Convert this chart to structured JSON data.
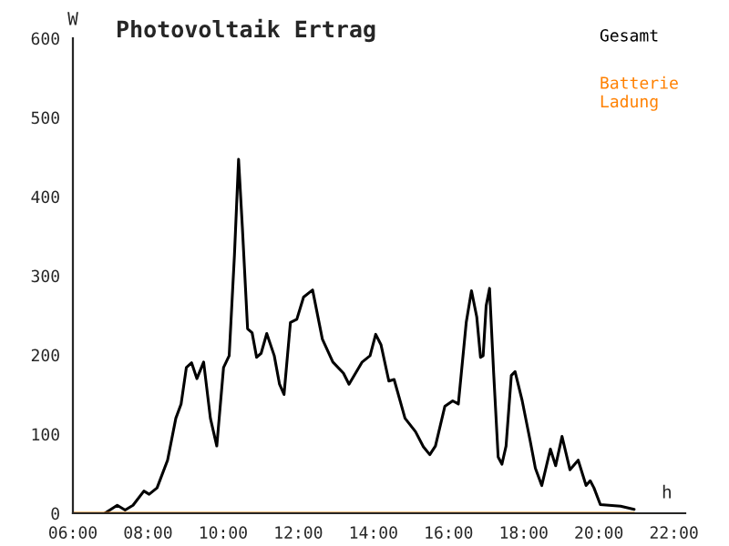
{
  "chart_data": {
    "type": "line",
    "title": "Photovoltaik Ertrag",
    "xlabel": "h",
    "ylabel": "W",
    "xlim": [
      6,
      22.3
    ],
    "xticks": [
      {
        "value": 6,
        "label": "06:00"
      },
      {
        "value": 8,
        "label": "08:00"
      },
      {
        "value": 10,
        "label": "10:00"
      },
      {
        "value": 12,
        "label": "12:00"
      },
      {
        "value": 14,
        "label": "14:00"
      },
      {
        "value": 16,
        "label": "16:00"
      },
      {
        "value": 18,
        "label": "18:00"
      },
      {
        "value": 20,
        "label": "20:00"
      },
      {
        "value": 22,
        "label": "22:00"
      }
    ],
    "ylim": [
      0,
      600
    ],
    "yticks": [
      0,
      100,
      200,
      300,
      400,
      500,
      600
    ],
    "grid": false,
    "legend": "top right",
    "marker": "none",
    "line_style": "solid",
    "series": [
      {
        "name": "Gesamt",
        "color": "#000000",
        "x": [
          6.85,
          7.18,
          7.39,
          7.6,
          7.89,
          8.03,
          8.24,
          8.52,
          8.74,
          8.88,
          9.02,
          9.16,
          9.3,
          9.48,
          9.66,
          9.83,
          10.01,
          10.16,
          10.3,
          10.41,
          10.51,
          10.65,
          10.77,
          10.89,
          11.01,
          11.16,
          11.36,
          11.5,
          11.62,
          11.79,
          11.96,
          12.14,
          12.38,
          12.64,
          12.92,
          13.2,
          13.35,
          13.7,
          13.91,
          14.06,
          14.2,
          14.41,
          14.55,
          14.84,
          15.12,
          15.33,
          15.5,
          15.65,
          15.9,
          16.11,
          16.26,
          16.47,
          16.61,
          16.75,
          16.85,
          16.92,
          17.0,
          17.09,
          17.2,
          17.32,
          17.42,
          17.53,
          17.67,
          17.77,
          17.96,
          18.17,
          18.31,
          18.48,
          18.71,
          18.85,
          19.02,
          19.23,
          19.45,
          19.66,
          19.77,
          19.87,
          20.04,
          20.58,
          20.94
        ],
        "values": [
          0,
          10,
          4,
          10,
          28,
          24,
          32,
          67,
          120,
          138,
          184,
          190,
          170,
          191,
          120,
          85,
          184,
          199,
          326,
          447,
          362,
          233,
          228,
          197,
          202,
          227,
          199,
          163,
          150,
          241,
          245,
          273,
          282,
          220,
          191,
          177,
          163,
          191,
          199,
          226,
          213,
          167,
          169,
          120,
          103,
          84,
          74,
          85,
          135,
          142,
          138,
          241,
          281,
          248,
          197,
          199,
          262,
          284,
          177,
          71,
          62,
          85,
          174,
          179,
          142,
          92,
          57,
          35,
          81,
          60,
          97,
          55,
          67,
          35,
          41,
          32,
          11,
          9,
          5
        ]
      },
      {
        "name": "Batterie Ladung",
        "color": "#ff8000",
        "x": [
          6,
          20.94
        ],
        "values": [
          0,
          0
        ]
      }
    ]
  }
}
